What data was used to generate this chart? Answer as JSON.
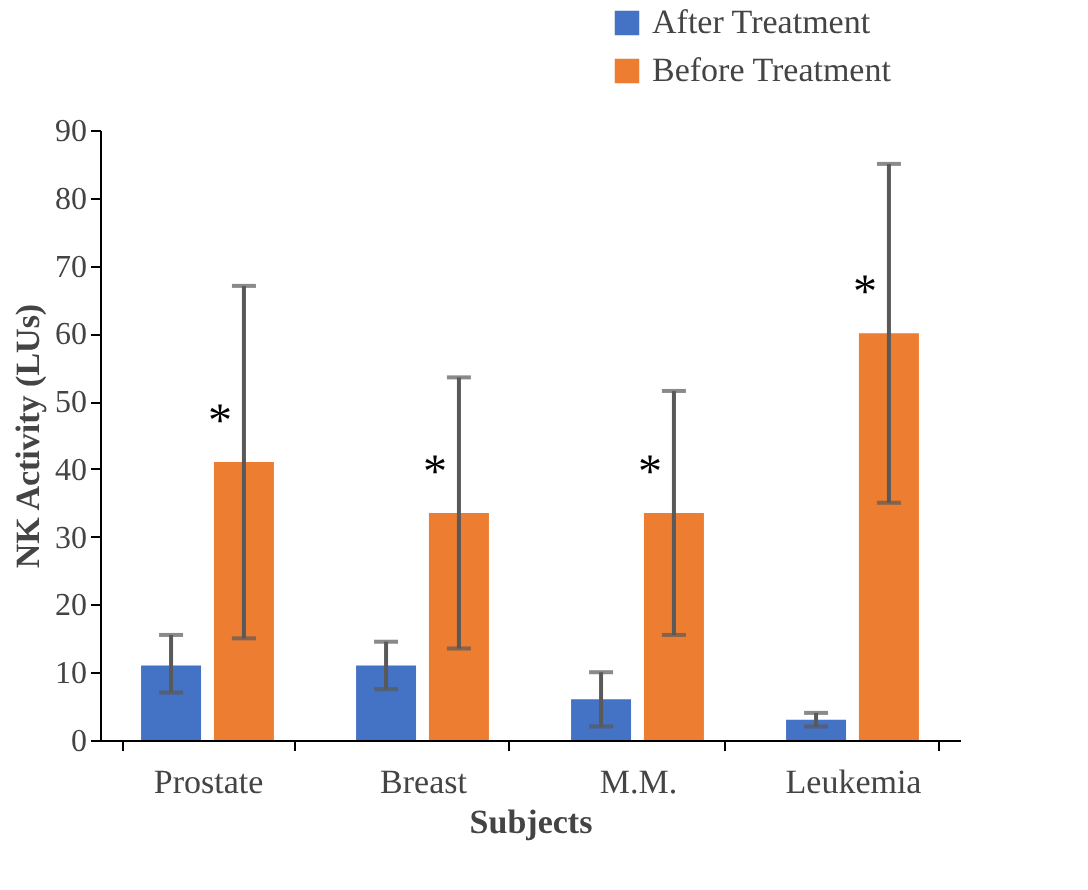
{
  "chart_data": {
    "type": "bar",
    "xlabel": "Subjects",
    "ylabel": "NK Activity (LUs)",
    "categories": [
      "Prostate",
      "Breast",
      "M.M.",
      "Leukemia"
    ],
    "series": [
      {
        "name": "After Treatment",
        "color": "#4472c4",
        "values": [
          11,
          11,
          6,
          3
        ],
        "errors": [
          [
            7,
            15.5
          ],
          [
            7.5,
            14.5
          ],
          [
            2,
            10
          ],
          [
            2,
            4
          ]
        ]
      },
      {
        "name": "Before Treatment",
        "color": "#ed7d31",
        "values": [
          41,
          33.5,
          33.5,
          60
        ],
        "errors": [
          [
            15,
            67
          ],
          [
            13.5,
            53.5
          ],
          [
            15.5,
            51.5
          ],
          [
            35,
            85
          ]
        ]
      }
    ],
    "ylim": [
      0,
      90
    ],
    "yticks": [
      0,
      10,
      20,
      30,
      40,
      50,
      60,
      70,
      80,
      90
    ],
    "grid": false,
    "legend": "top right",
    "annotations": [
      "*",
      "*",
      "*",
      "*"
    ]
  }
}
